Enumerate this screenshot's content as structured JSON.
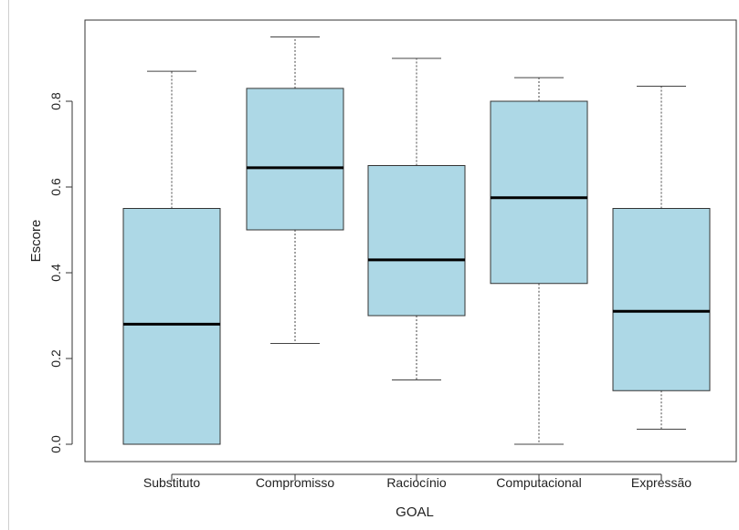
{
  "chart_data": {
    "type": "box",
    "title": "",
    "xlabel": "GOAL",
    "ylabel": "Escore",
    "ylim": [
      -0.02,
      0.97
    ],
    "yticks": [
      0.0,
      0.2,
      0.4,
      0.6,
      0.8
    ],
    "ytick_labels": [
      "0.0",
      "0.2",
      "0.4",
      "0.6",
      "0.8"
    ],
    "grid": false,
    "categories": [
      "Substituto",
      "Compromisso",
      "Raciocínio",
      "Computacional",
      "Expressão"
    ],
    "boxes": [
      {
        "min": 0.0,
        "q1": 0.0,
        "median": 0.28,
        "q3": 0.55,
        "max": 0.87
      },
      {
        "min": 0.235,
        "q1": 0.5,
        "median": 0.645,
        "q3": 0.83,
        "max": 0.95
      },
      {
        "min": 0.15,
        "q1": 0.3,
        "median": 0.43,
        "q3": 0.65,
        "max": 0.9
      },
      {
        "min": 0.0,
        "q1": 0.375,
        "median": 0.575,
        "q3": 0.8,
        "max": 0.855
      },
      {
        "min": 0.035,
        "q1": 0.125,
        "median": 0.31,
        "q3": 0.55,
        "max": 0.835
      }
    ],
    "colors": {
      "box_fill": "#add8e6",
      "box_stroke": "#333333",
      "median": "#000000",
      "whisker": "#444444"
    }
  }
}
